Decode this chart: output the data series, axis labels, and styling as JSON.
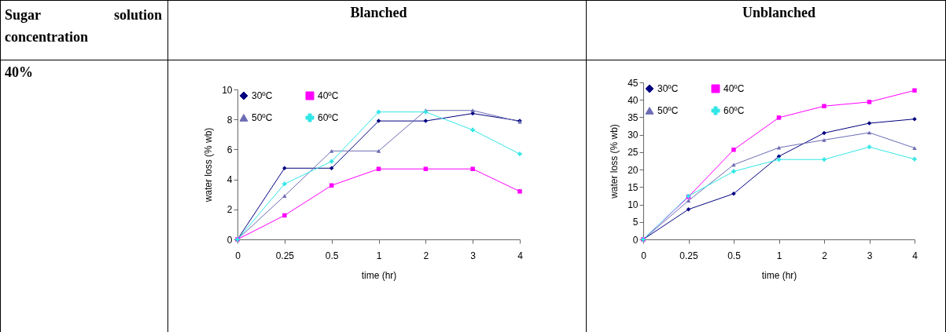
{
  "chart_data": [
    {
      "type": "other",
      "annotations": [
        "Sugar solution concentration",
        "40%"
      ]
    },
    {
      "type": "line",
      "title": "Blanched",
      "xlabel": "time (hr)",
      "ylabel": "water loss (% wb)",
      "categories": [
        "0",
        "0.25",
        "0.5",
        "1",
        "2",
        "3",
        "4"
      ],
      "series": [
        {
          "name": "30ºC",
          "color": "#000080",
          "marker": "diamond",
          "values": [
            0,
            4.75,
            4.75,
            7.9,
            7.9,
            8.4,
            7.9
          ]
        },
        {
          "name": "40ºC",
          "color": "#ff00ff",
          "marker": "square",
          "values": [
            0,
            1.6,
            3.6,
            4.7,
            4.7,
            4.7,
            3.2
          ]
        },
        {
          "name": "50ºC",
          "color": "#6b6bb3",
          "marker": "triangle",
          "values": [
            0,
            2.9,
            5.9,
            5.9,
            8.6,
            8.6,
            7.85
          ]
        },
        {
          "name": "60ºC",
          "color": "#33e6e6",
          "marker": "cross",
          "values": [
            0,
            3.7,
            5.2,
            8.5,
            8.5,
            7.3,
            5.7
          ]
        }
      ],
      "ylim": [
        0,
        10
      ],
      "yticks": [
        0,
        2,
        4,
        6,
        8,
        10
      ],
      "legend": "top left",
      "grid": false
    },
    {
      "type": "line",
      "title": "Unblanched",
      "xlabel": "time (hr)",
      "ylabel": "water loss (% wb)",
      "categories": [
        "0",
        "0.25",
        "0.5",
        "1",
        "2",
        "3",
        "4"
      ],
      "series": [
        {
          "name": "30ºC",
          "color": "#000080",
          "marker": "diamond",
          "values": [
            0,
            8.6,
            13.1,
            23.8,
            30.5,
            33.3,
            34.5
          ]
        },
        {
          "name": "40ºC",
          "color": "#ff00ff",
          "marker": "square",
          "values": [
            0,
            12.2,
            25.7,
            34.9,
            38.2,
            39.4,
            42.7
          ]
        },
        {
          "name": "50ºC",
          "color": "#6b6bb3",
          "marker": "triangle",
          "values": [
            0,
            11.1,
            21.4,
            26.3,
            28.5,
            30.6,
            26.2
          ]
        },
        {
          "name": "60ºC",
          "color": "#33e6e6",
          "marker": "cross",
          "values": [
            0,
            12.4,
            19.5,
            22.9,
            22.9,
            26.5,
            23
          ]
        }
      ],
      "ylim": [
        0,
        45
      ],
      "yticks": [
        0,
        5,
        10,
        15,
        20,
        25,
        30,
        35,
        40,
        45
      ],
      "legend": "top left",
      "grid": false
    }
  ]
}
